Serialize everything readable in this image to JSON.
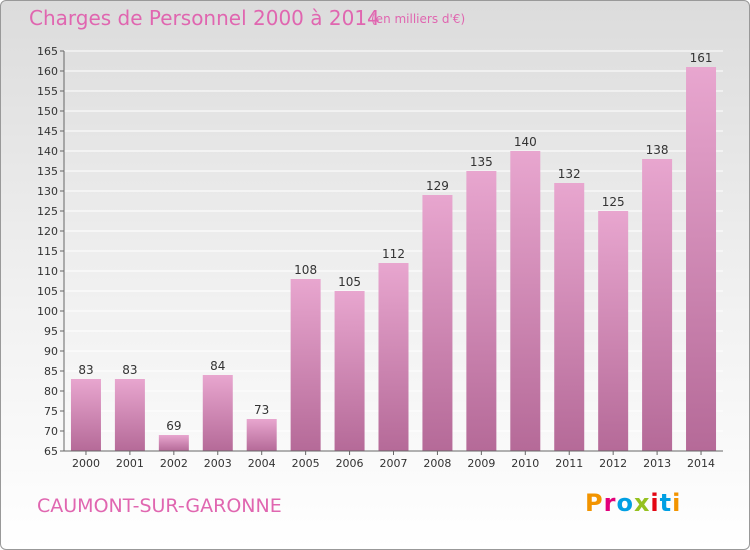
{
  "header": {
    "title": "Charges de Personnel 2000 à 2014",
    "subtitle": "(en milliers d'€)"
  },
  "footer": {
    "commune": "CAUMONT-SUR-GARONNE",
    "brand": "Proxiti",
    "brand_colors": [
      "#f29400",
      "#e2007a",
      "#009fe3",
      "#95c11f",
      "#e30613",
      "#009fe3",
      "#f29400"
    ]
  },
  "colors": {
    "accent": "#e066b0",
    "bar_top": "#e8a6cf",
    "bar_bottom": "#b56a98",
    "grid": "#ffffff",
    "text": "#333333"
  },
  "chart_data": {
    "type": "bar",
    "title": "Charges de Personnel 2000 à 2014",
    "subtitle": "(en milliers d'€)",
    "xlabel": "",
    "ylabel": "",
    "categories": [
      "2000",
      "2001",
      "2002",
      "2003",
      "2004",
      "2005",
      "2006",
      "2007",
      "2008",
      "2009",
      "2010",
      "2011",
      "2012",
      "2013",
      "2014"
    ],
    "values": [
      83,
      83,
      69,
      84,
      73,
      108,
      105,
      112,
      129,
      135,
      140,
      132,
      125,
      138,
      161
    ],
    "ylim": [
      65,
      165
    ],
    "yticks": [
      65,
      70,
      75,
      80,
      85,
      90,
      95,
      100,
      105,
      110,
      115,
      120,
      125,
      130,
      135,
      140,
      145,
      150,
      155,
      160,
      165
    ],
    "grid": true,
    "legend": "none"
  }
}
